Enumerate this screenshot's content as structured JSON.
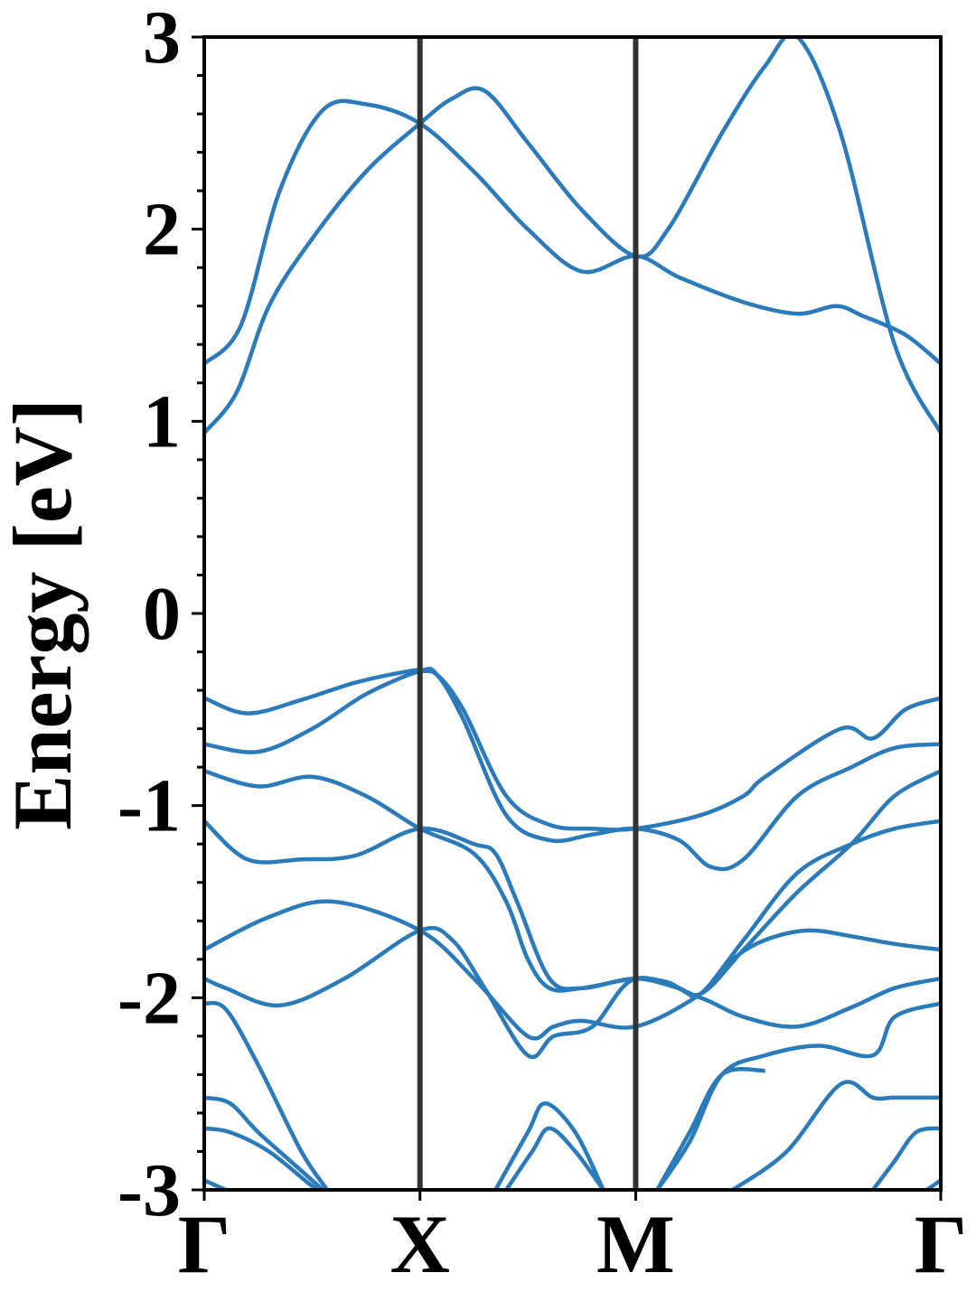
{
  "chart_data": {
    "type": "line",
    "title": "",
    "xlabel": "",
    "ylabel": "Energy [eV]",
    "ylim": [
      -3,
      3
    ],
    "yticks": [
      {
        "value": 3,
        "label": "3"
      },
      {
        "value": 2,
        "label": "2"
      },
      {
        "value": 1,
        "label": "1"
      },
      {
        "value": 0,
        "label": "0"
      },
      {
        "value": -1,
        "label": "-1"
      },
      {
        "value": -2,
        "label": "-2"
      },
      {
        "value": -3,
        "label": "-3"
      }
    ],
    "y_minor_step": 0.2,
    "xlim": [
      0,
      3.414
    ],
    "high_symmetry_points": [
      {
        "label": "Γ",
        "x": 0
      },
      {
        "label": "X",
        "x": 1.0
      },
      {
        "label": "M",
        "x": 2.0
      },
      {
        "label": "Γ",
        "x": 3.414
      }
    ],
    "grid": false,
    "legend": "none",
    "colors": {
      "bands": "#2b7bba",
      "kpath_lines": "#333333",
      "axes": "#000000"
    },
    "series": [
      {
        "x": [
          0,
          0.17,
          0.35,
          0.55,
          0.75,
          1.0,
          1.25,
          1.5,
          1.75,
          2.0,
          2.2,
          2.5,
          2.75,
          2.93,
          3.05,
          3.25,
          3.414
        ],
        "y": [
          1.3,
          1.5,
          2.2,
          2.62,
          2.65,
          2.55,
          2.3,
          2.0,
          1.78,
          1.86,
          1.75,
          1.62,
          1.56,
          1.6,
          1.55,
          1.45,
          1.3
        ]
      },
      {
        "x": [
          0,
          0.15,
          0.3,
          0.5,
          0.75,
          1.0,
          1.15,
          1.3,
          1.5,
          1.75,
          2.0,
          2.15,
          2.4,
          2.6,
          2.75,
          2.95,
          3.2,
          3.414
        ],
        "y": [
          0.94,
          1.15,
          1.6,
          1.95,
          2.3,
          2.55,
          2.68,
          2.72,
          2.45,
          2.1,
          1.86,
          2.0,
          2.5,
          2.85,
          3.0,
          2.5,
          1.4,
          0.94
        ]
      },
      {
        "x": [
          0,
          0.2,
          0.45,
          0.7,
          0.95,
          1.0,
          1.08,
          1.2,
          1.4,
          1.6,
          1.8,
          2.0,
          2.3,
          2.5,
          2.6,
          2.95,
          3.1,
          3.25,
          3.414
        ],
        "y": [
          -0.44,
          -0.52,
          -0.45,
          -0.36,
          -0.3,
          -0.3,
          -0.32,
          -0.5,
          -0.95,
          -1.1,
          -1.12,
          -1.12,
          -1.05,
          -0.95,
          -0.85,
          -0.6,
          -0.65,
          -0.5,
          -0.44
        ]
      },
      {
        "x": [
          0,
          0.25,
          0.5,
          0.75,
          1.0,
          1.08,
          1.2,
          1.4,
          1.6,
          1.8,
          2.0,
          2.2,
          2.35,
          2.5,
          2.75,
          3.0,
          3.2,
          3.414
        ],
        "y": [
          -0.68,
          -0.72,
          -0.6,
          -0.42,
          -0.3,
          -0.32,
          -0.55,
          -1.05,
          -1.18,
          -1.15,
          -1.12,
          -1.18,
          -1.32,
          -1.28,
          -0.95,
          -0.8,
          -0.7,
          -0.68
        ]
      },
      {
        "x": [
          0,
          0.25,
          0.5,
          0.75,
          1.0,
          1.25,
          1.4,
          1.5,
          1.6,
          1.75,
          2.0,
          2.15,
          2.3,
          2.5,
          2.75,
          3.0,
          3.2,
          3.414
        ],
        "y": [
          -0.82,
          -0.9,
          -0.85,
          -0.95,
          -1.12,
          -1.25,
          -1.5,
          -1.8,
          -1.95,
          -1.95,
          -1.9,
          -1.92,
          -1.98,
          -1.75,
          -1.45,
          -1.2,
          -0.95,
          -0.82
        ]
      },
      {
        "x": [
          0,
          0.2,
          0.45,
          0.7,
          1.0,
          1.25,
          1.35,
          1.45,
          1.6,
          1.75,
          2.0,
          2.2,
          2.3,
          2.5,
          2.75,
          3.0,
          3.2,
          3.414
        ],
        "y": [
          -1.08,
          -1.28,
          -1.28,
          -1.26,
          -1.12,
          -1.2,
          -1.25,
          -1.5,
          -1.9,
          -1.95,
          -1.9,
          -1.95,
          -1.98,
          -1.7,
          -1.35,
          -1.2,
          -1.12,
          -1.08
        ]
      },
      {
        "x": [
          0,
          0.3,
          0.6,
          1.0,
          1.25,
          1.5,
          1.62,
          1.75,
          2.0,
          2.3,
          2.45,
          2.6,
          2.8,
          3.0,
          3.2,
          3.414
        ],
        "y": [
          -1.75,
          -1.58,
          -1.5,
          -1.65,
          -1.9,
          -2.2,
          -2.15,
          -2.12,
          -2.15,
          -1.98,
          -1.8,
          -1.7,
          -1.65,
          -1.68,
          -1.72,
          -1.75
        ]
      },
      {
        "x": [
          0,
          0.1,
          0.35,
          0.65,
          1.0,
          1.15,
          1.3,
          1.5,
          1.62,
          1.8,
          2.0,
          2.3,
          2.5,
          2.75,
          3.0,
          3.2,
          3.414
        ],
        "y": [
          -1.9,
          -1.95,
          -2.04,
          -1.9,
          -1.65,
          -1.7,
          -1.95,
          -2.3,
          -2.2,
          -2.15,
          -1.9,
          -2.0,
          -2.1,
          -2.15,
          -2.05,
          -1.95,
          -1.9
        ]
      },
      {
        "x": [
          0,
          0.1,
          0.25,
          0.45,
          0.57
        ],
        "y": [
          -2.03,
          -2.06,
          -2.35,
          -2.8,
          -3.0
        ]
      },
      {
        "x": [
          2.1,
          2.25,
          2.4,
          2.6,
          2.85,
          3.1,
          3.2,
          3.414
        ],
        "y": [
          -3.0,
          -2.75,
          -2.4,
          -2.3,
          -2.25,
          -2.3,
          -2.1,
          -2.03
        ]
      },
      {
        "x": [
          0,
          0.12,
          0.25,
          0.45,
          0.55
        ],
        "y": [
          -2.52,
          -2.55,
          -2.7,
          -2.9,
          -3.0
        ]
      },
      {
        "x": [
          2.45,
          2.7,
          2.95,
          3.1,
          3.2,
          3.414
        ],
        "y": [
          -3.0,
          -2.8,
          -2.45,
          -2.52,
          -2.52,
          -2.52
        ]
      },
      {
        "x": [
          0,
          0.12,
          0.3,
          0.5,
          0.55
        ],
        "y": [
          -2.68,
          -2.7,
          -2.8,
          -2.98,
          -3.0
        ]
      },
      {
        "x": [
          3.1,
          3.2,
          3.3,
          3.414
        ],
        "y": [
          -3.0,
          -2.85,
          -2.7,
          -2.68
        ]
      },
      {
        "x": [
          0.0,
          0.1,
          0.12
        ],
        "y": [
          -2.95,
          -3.0,
          -3.0
        ]
      },
      {
        "x": [
          3.35,
          3.414
        ],
        "y": [
          -3.0,
          -2.95
        ]
      },
      {
        "x": [
          1.35,
          1.5,
          1.58,
          1.72,
          1.85
        ],
        "y": [
          -3.0,
          -2.7,
          -2.55,
          -2.7,
          -3.0
        ]
      },
      {
        "x": [
          1.4,
          1.52,
          1.6,
          1.72,
          1.85
        ],
        "y": [
          -3.0,
          -2.8,
          -2.68,
          -2.8,
          -3.0
        ]
      },
      {
        "x": [
          2.1,
          2.25,
          2.4,
          2.6
        ],
        "y": [
          -3.0,
          -2.7,
          -2.4,
          -2.38
        ]
      }
    ]
  }
}
